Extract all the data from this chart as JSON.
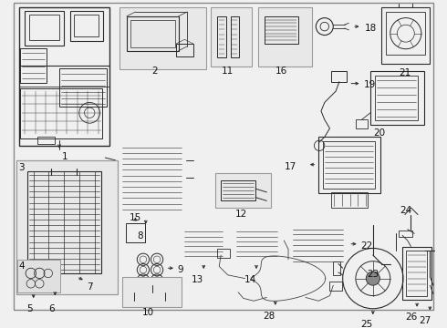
{
  "bg_color": "#f0f0f0",
  "border_color": "#999999",
  "line_color": "#2a2a2a",
  "box_fill": "#e8e8e8",
  "fig_w": 4.9,
  "fig_h": 3.6,
  "dpi": 100
}
